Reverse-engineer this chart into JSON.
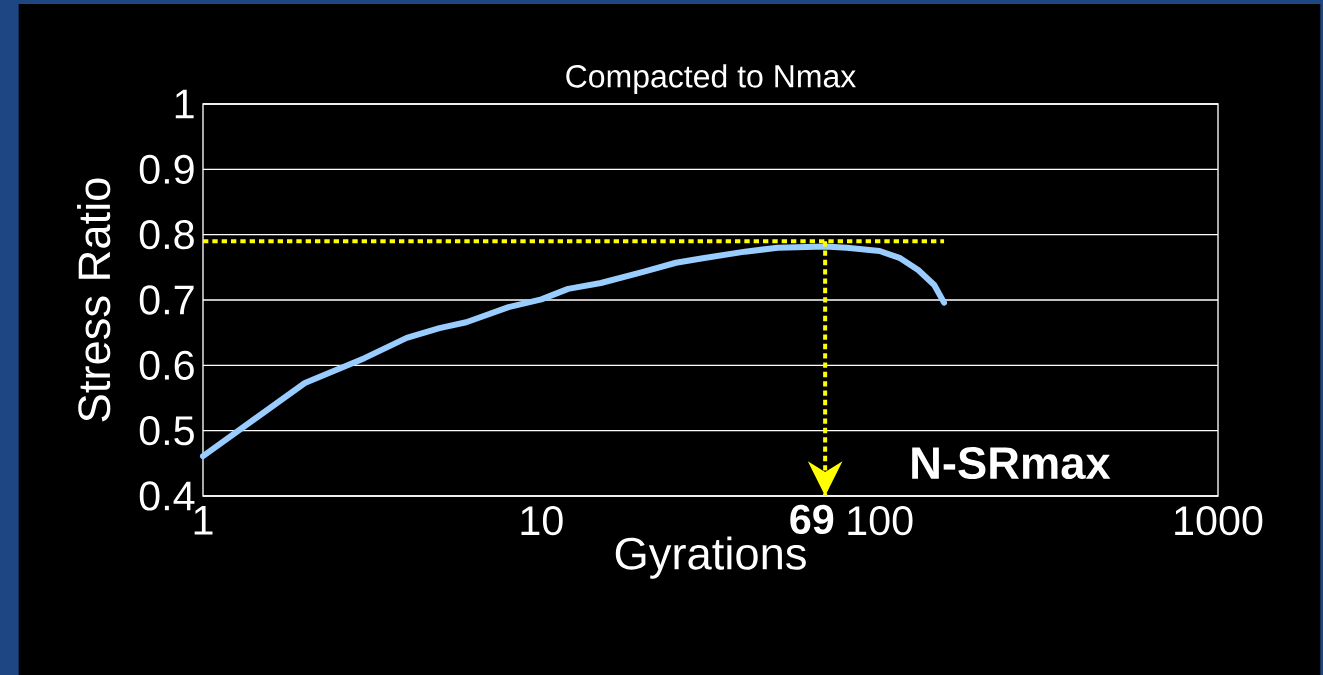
{
  "chart_data": {
    "type": "line",
    "title": "Compacted to Nmax",
    "xlabel": "Gyrations",
    "ylabel": "Stress Ratio",
    "log": "x",
    "x": [
      1,
      2,
      3,
      4,
      5,
      6,
      8,
      10,
      12,
      15,
      20,
      25,
      30,
      40,
      50,
      69,
      80,
      100,
      115,
      130,
      145,
      155
    ],
    "series": [
      {
        "color": "#99ccff",
        "values": [
          0.461,
          0.573,
          0.611,
          0.642,
          0.657,
          0.666,
          0.689,
          0.701,
          0.717,
          0.726,
          0.743,
          0.757,
          0.764,
          0.774,
          0.78,
          0.782,
          0.78,
          0.775,
          0.764,
          0.746,
          0.723,
          0.696
        ]
      }
    ],
    "xlim": [
      1,
      1000
    ],
    "ylim": [
      0.4,
      1
    ],
    "xticks": [
      1,
      10,
      100,
      1000
    ],
    "yticks": [
      0.4,
      0.5,
      0.6,
      0.7,
      0.8,
      0.9,
      1
    ],
    "grid": "y",
    "ref_lines": [
      {
        "axis": "y",
        "value": 0.79,
        "color": "#ffff00",
        "line_style": "dotted"
      },
      {
        "axis": "x",
        "value": 69,
        "label": "69",
        "color": "#ffff00",
        "line_style": "dotted"
      }
    ],
    "annotations": [
      "N-SRmax"
    ]
  }
}
